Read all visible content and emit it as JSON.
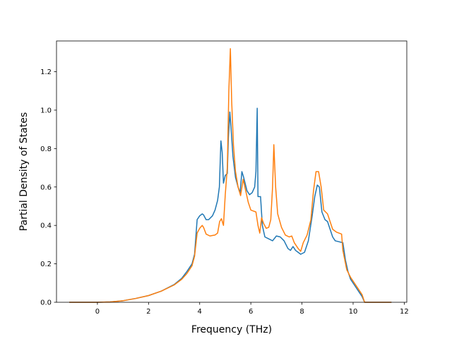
{
  "chart_data": {
    "type": "line",
    "title": "",
    "xlabel": "Frequency (THz)",
    "ylabel": "Partial Density of States",
    "xlim": [
      -1.6,
      12.1
    ],
    "ylim": [
      0.0,
      1.36
    ],
    "xticks": [
      0,
      2,
      4,
      6,
      8,
      10,
      12
    ],
    "yticks": [
      0.0,
      0.2,
      0.4,
      0.6,
      0.8,
      1.0,
      1.2
    ],
    "xtick_labels": [
      "0",
      "2",
      "4",
      "6",
      "8",
      "10",
      "12"
    ],
    "ytick_labels": [
      "0.0",
      "0.2",
      "0.4",
      "0.6",
      "0.8",
      "1.0",
      "1.2"
    ],
    "grid": false,
    "legend": null,
    "series": [
      {
        "color": "#1f77b4",
        "points": [
          [
            -1.1,
            0.0
          ],
          [
            0.0,
            0.0
          ],
          [
            0.5,
            0.002
          ],
          [
            1.0,
            0.008
          ],
          [
            1.5,
            0.02
          ],
          [
            2.0,
            0.035
          ],
          [
            2.5,
            0.058
          ],
          [
            3.0,
            0.092
          ],
          [
            3.3,
            0.125
          ],
          [
            3.5,
            0.16
          ],
          [
            3.7,
            0.2
          ],
          [
            3.8,
            0.25
          ],
          [
            3.9,
            0.43
          ],
          [
            4.0,
            0.45
          ],
          [
            4.1,
            0.46
          ],
          [
            4.15,
            0.455
          ],
          [
            4.25,
            0.43
          ],
          [
            4.35,
            0.43
          ],
          [
            4.5,
            0.45
          ],
          [
            4.6,
            0.48
          ],
          [
            4.7,
            0.53
          ],
          [
            4.77,
            0.6
          ],
          [
            4.83,
            0.84
          ],
          [
            4.88,
            0.78
          ],
          [
            4.93,
            0.62
          ],
          [
            5.0,
            0.66
          ],
          [
            5.08,
            0.67
          ],
          [
            5.12,
            0.85
          ],
          [
            5.18,
            0.99
          ],
          [
            5.23,
            0.9
          ],
          [
            5.3,
            0.76
          ],
          [
            5.4,
            0.65
          ],
          [
            5.5,
            0.6
          ],
          [
            5.58,
            0.57
          ],
          [
            5.65,
            0.68
          ],
          [
            5.72,
            0.65
          ],
          [
            5.85,
            0.58
          ],
          [
            5.95,
            0.56
          ],
          [
            6.05,
            0.57
          ],
          [
            6.15,
            0.6
          ],
          [
            6.2,
            0.68
          ],
          [
            6.25,
            1.01
          ],
          [
            6.28,
            0.55
          ],
          [
            6.38,
            0.55
          ],
          [
            6.45,
            0.4
          ],
          [
            6.55,
            0.34
          ],
          [
            6.7,
            0.33
          ],
          [
            6.85,
            0.32
          ],
          [
            7.0,
            0.345
          ],
          [
            7.15,
            0.34
          ],
          [
            7.3,
            0.32
          ],
          [
            7.45,
            0.28
          ],
          [
            7.55,
            0.27
          ],
          [
            7.65,
            0.29
          ],
          [
            7.75,
            0.27
          ],
          [
            7.85,
            0.26
          ],
          [
            7.95,
            0.25
          ],
          [
            8.1,
            0.26
          ],
          [
            8.25,
            0.32
          ],
          [
            8.4,
            0.45
          ],
          [
            8.5,
            0.55
          ],
          [
            8.6,
            0.61
          ],
          [
            8.68,
            0.6
          ],
          [
            8.78,
            0.47
          ],
          [
            8.9,
            0.43
          ],
          [
            9.0,
            0.42
          ],
          [
            9.1,
            0.38
          ],
          [
            9.2,
            0.34
          ],
          [
            9.3,
            0.32
          ],
          [
            9.45,
            0.315
          ],
          [
            9.6,
            0.31
          ],
          [
            9.7,
            0.22
          ],
          [
            9.8,
            0.16
          ],
          [
            9.9,
            0.12
          ],
          [
            10.05,
            0.09
          ],
          [
            10.2,
            0.06
          ],
          [
            10.35,
            0.03
          ],
          [
            10.45,
            0.0
          ],
          [
            11.5,
            0.0
          ]
        ]
      },
      {
        "color": "#ff7f0e",
        "points": [
          [
            -1.1,
            0.0
          ],
          [
            0.0,
            0.0
          ],
          [
            0.5,
            0.002
          ],
          [
            1.0,
            0.008
          ],
          [
            1.5,
            0.02
          ],
          [
            2.0,
            0.035
          ],
          [
            2.5,
            0.058
          ],
          [
            3.0,
            0.09
          ],
          [
            3.3,
            0.12
          ],
          [
            3.5,
            0.15
          ],
          [
            3.7,
            0.19
          ],
          [
            3.8,
            0.24
          ],
          [
            3.9,
            0.36
          ],
          [
            4.0,
            0.385
          ],
          [
            4.1,
            0.4
          ],
          [
            4.15,
            0.39
          ],
          [
            4.25,
            0.355
          ],
          [
            4.4,
            0.345
          ],
          [
            4.6,
            0.35
          ],
          [
            4.7,
            0.36
          ],
          [
            4.78,
            0.42
          ],
          [
            4.85,
            0.435
          ],
          [
            4.93,
            0.4
          ],
          [
            5.0,
            0.56
          ],
          [
            5.08,
            0.7
          ],
          [
            5.14,
            1.1
          ],
          [
            5.2,
            1.32
          ],
          [
            5.25,
            1.05
          ],
          [
            5.32,
            0.82
          ],
          [
            5.4,
            0.68
          ],
          [
            5.5,
            0.6
          ],
          [
            5.6,
            0.555
          ],
          [
            5.7,
            0.64
          ],
          [
            5.8,
            0.58
          ],
          [
            5.9,
            0.52
          ],
          [
            6.0,
            0.48
          ],
          [
            6.1,
            0.475
          ],
          [
            6.2,
            0.47
          ],
          [
            6.28,
            0.4
          ],
          [
            6.35,
            0.36
          ],
          [
            6.42,
            0.44
          ],
          [
            6.5,
            0.41
          ],
          [
            6.6,
            0.385
          ],
          [
            6.7,
            0.39
          ],
          [
            6.78,
            0.43
          ],
          [
            6.85,
            0.6
          ],
          [
            6.9,
            0.82
          ],
          [
            6.97,
            0.6
          ],
          [
            7.05,
            0.46
          ],
          [
            7.2,
            0.39
          ],
          [
            7.35,
            0.35
          ],
          [
            7.5,
            0.34
          ],
          [
            7.6,
            0.345
          ],
          [
            7.7,
            0.31
          ],
          [
            7.85,
            0.28
          ],
          [
            7.95,
            0.265
          ],
          [
            8.05,
            0.31
          ],
          [
            8.2,
            0.35
          ],
          [
            8.35,
            0.43
          ],
          [
            8.45,
            0.58
          ],
          [
            8.55,
            0.68
          ],
          [
            8.65,
            0.68
          ],
          [
            8.75,
            0.6
          ],
          [
            8.85,
            0.48
          ],
          [
            9.0,
            0.46
          ],
          [
            9.1,
            0.42
          ],
          [
            9.2,
            0.38
          ],
          [
            9.35,
            0.365
          ],
          [
            9.55,
            0.355
          ],
          [
            9.6,
            0.27
          ],
          [
            9.75,
            0.17
          ],
          [
            9.9,
            0.13
          ],
          [
            10.05,
            0.1
          ],
          [
            10.2,
            0.07
          ],
          [
            10.35,
            0.04
          ],
          [
            10.45,
            0.0
          ],
          [
            11.5,
            0.0
          ]
        ]
      }
    ]
  }
}
